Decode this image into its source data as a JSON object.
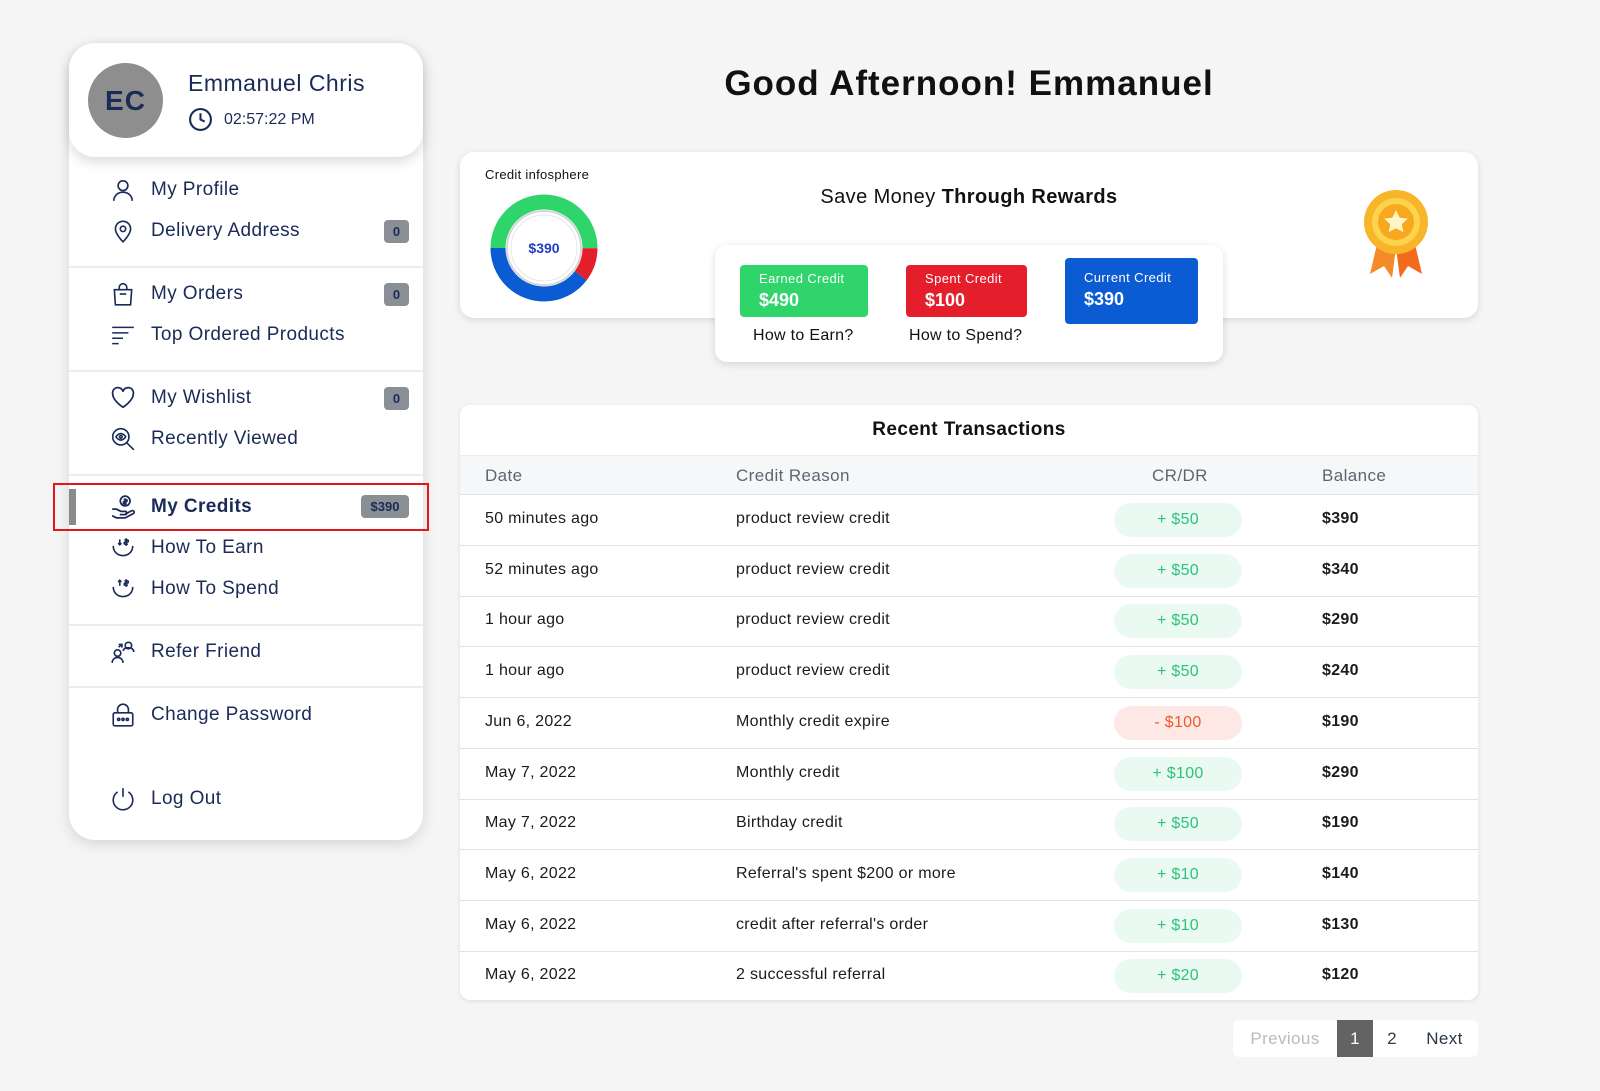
{
  "user": {
    "initials": "EC",
    "name": "Emmanuel Chris",
    "time": "02:57:22 PM"
  },
  "nav": {
    "profile": "My Profile",
    "delivery": "Delivery Address",
    "delivery_count": "0",
    "orders": "My Orders",
    "orders_count": "0",
    "top_products": "Top Ordered Products",
    "wishlist": "My Wishlist",
    "wishlist_count": "0",
    "recently_viewed": "Recently Viewed",
    "credits": "My Credits",
    "credits_amount": "$390",
    "how_earn": "How To Earn",
    "how_spend": "How To Spend",
    "refer": "Refer Friend",
    "change_password": "Change Password",
    "logout": "Log Out"
  },
  "greeting": "Good Afternoon! Emmanuel",
  "credit": {
    "infosphere_label": "Credit infosphere",
    "donut_value": "$390",
    "save_prefix": "Save Money",
    "save_bold": "Through Rewards",
    "earned_label": "Earned Credit",
    "earned_value": "$490",
    "spent_label": "Spent Credit",
    "spent_value": "$100",
    "current_label": "Current Credit",
    "current_value": "$390",
    "how_earn": "How to Earn?",
    "how_spend": "How to Spend?"
  },
  "colors": {
    "earned": "#2fd46a",
    "spent": "#e51e2c",
    "current": "#0b5bd3",
    "credit_text": "#2ec27a",
    "debit_text": "#ee5a2a"
  },
  "transactions": {
    "title": "Recent Transactions",
    "headers": [
      "Date",
      "Credit Reason",
      "CR/DR",
      "Balance"
    ],
    "rows": [
      {
        "date": "50 minutes ago",
        "reason": "product review credit",
        "amount": "+ $50",
        "type": "cr",
        "balance": "$390"
      },
      {
        "date": "52 minutes ago",
        "reason": "product review credit",
        "amount": "+ $50",
        "type": "cr",
        "balance": "$340"
      },
      {
        "date": "1 hour ago",
        "reason": "product review credit",
        "amount": "+ $50",
        "type": "cr",
        "balance": "$290"
      },
      {
        "date": "1 hour ago",
        "reason": "product review credit",
        "amount": "+ $50",
        "type": "cr",
        "balance": "$240"
      },
      {
        "date": "Jun 6, 2022",
        "reason": "Monthly credit expire",
        "amount": "- $100",
        "type": "dr",
        "balance": "$190"
      },
      {
        "date": "May 7, 2022",
        "reason": "Monthly credit",
        "amount": "+ $100",
        "type": "cr",
        "balance": "$290"
      },
      {
        "date": "May 7, 2022",
        "reason": "Birthday credit",
        "amount": "+ $50",
        "type": "cr",
        "balance": "$190"
      },
      {
        "date": "May 6, 2022",
        "reason": "Referral's spent $200 or more",
        "amount": "+ $10",
        "type": "cr",
        "balance": "$140"
      },
      {
        "date": "May 6, 2022",
        "reason": "credit after referral's order",
        "amount": "+ $10",
        "type": "cr",
        "balance": "$130"
      },
      {
        "date": "May 6, 2022",
        "reason": "2 successful referral",
        "amount": "+ $20",
        "type": "cr",
        "balance": "$120"
      }
    ]
  },
  "pagination": {
    "previous": "Previous",
    "pages": [
      "1",
      "2"
    ],
    "current": "1",
    "next": "Next"
  }
}
